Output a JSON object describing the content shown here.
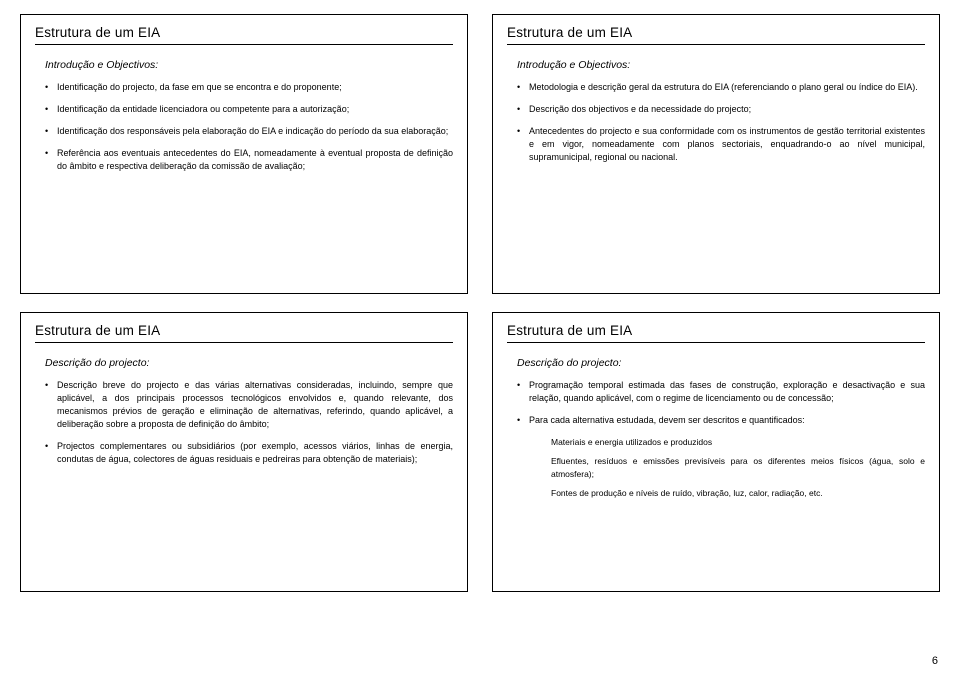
{
  "page_number": "6",
  "slides": [
    {
      "title": "Estrutura de um EIA",
      "heading": "Introdução e Objectivos:",
      "bullets": [
        "Identificação do projecto, da fase em que se encontra e do proponente;",
        "Identificação da entidade licenciadora ou competente para a autorização;",
        "Identificação dos responsáveis pela elaboração do EIA e indicação do período da sua elaboração;",
        "Referência aos eventuais antecedentes do EIA, nomeadamente à eventual proposta de definição do âmbito e respectiva deliberação da comissão de avaliação;"
      ]
    },
    {
      "title": "Estrutura de um EIA",
      "heading": "Introdução e Objectivos:",
      "bullets": [
        "Metodologia e descrição geral da estrutura do EIA (referenciando o plano geral ou índice do EIA).",
        "Descrição dos objectivos e da necessidade do projecto;",
        "Antecedentes do projecto e sua conformidade com os instrumentos de gestão territorial existentes e em vigor, nomeadamente com planos sectoriais, enquadrando-o ao nível municipal, supramunicipal, regional ou nacional."
      ]
    },
    {
      "title": "Estrutura de um EIA",
      "heading": "Descrição do projecto:",
      "bullets": [
        "Descrição breve do projecto e das várias alternativas consideradas, incluindo, sempre que aplicável, a dos principais processos tecnológicos envolvidos e, quando relevante, dos mecanismos prévios de geração e eliminação de alternativas, referindo, quando aplicável, a deliberação sobre a proposta de definição do âmbito;",
        "Projectos complementares ou subsidiários (por exemplo, acessos viários, linhas de energia, condutas de água, colectores de águas residuais e pedreiras para obtenção de materiais);"
      ]
    },
    {
      "title": "Estrutura de um EIA",
      "heading": "Descrição do projecto:",
      "bullets": [
        "Programação temporal estimada das fases de construção, exploração e desactivação e sua relação, quando aplicável, com o regime de licenciamento ou de concessão;",
        "Para cada alternativa estudada, devem ser descritos e quantificados:"
      ],
      "sub": [
        "Materiais e energia utilizados e produzidos",
        "Efluentes, resíduos e emissões previsíveis para os diferentes meios físicos (água, solo e atmosfera);",
        "Fontes de produção e níveis de ruído, vibração, luz, calor, radiação, etc."
      ]
    }
  ]
}
